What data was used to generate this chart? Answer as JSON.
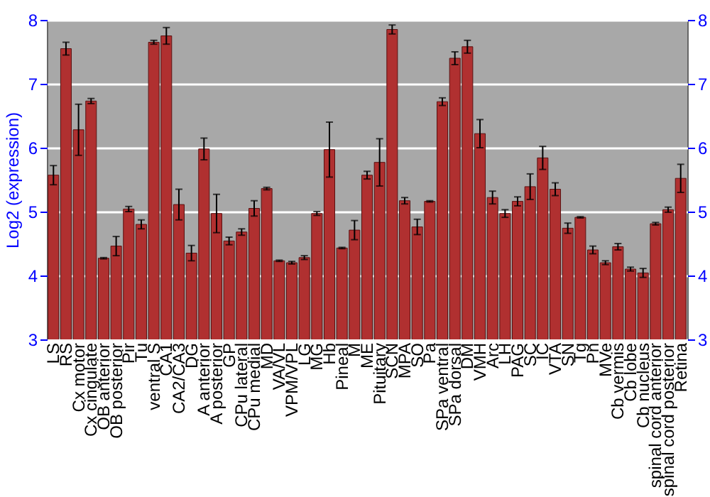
{
  "chart_data": {
    "type": "bar",
    "ylabel": "Log2 (expression)",
    "categories": [
      "LS",
      "RS",
      "Cx motor",
      "Cx cingulate",
      "OB anterior",
      "OB posterior",
      "Pir",
      "Tu",
      "ventral S",
      "CA1",
      "CA2/CA3",
      "DG",
      "A anterior",
      "A posterior",
      "GP",
      "CPu lateral",
      "CPu medial",
      "MD",
      "VA/VL",
      "VPM/VPL",
      "LG",
      "MG",
      "Hb",
      "Pineal",
      "M",
      "ME",
      "Pituitary",
      "SCN",
      "MPA",
      "SO",
      "Pa",
      "SPa ventral",
      "SPa dorsal",
      "DM",
      "VMH",
      "Arc",
      "LH",
      "PAG",
      "SC",
      "IC",
      "VTA",
      "SN",
      "Tg",
      "Pn",
      "MVe",
      "Cb vermis",
      "Cb lobe",
      "Cb nucleus",
      "spinal cord anterior",
      "spinal cord posterior",
      "Retina"
    ],
    "values": [
      5.57,
      7.55,
      6.28,
      6.73,
      4.27,
      4.46,
      5.04,
      4.8,
      7.65,
      7.75,
      5.11,
      4.35,
      5.98,
      4.97,
      4.54,
      4.68,
      5.05,
      5.36,
      4.23,
      4.2,
      4.28,
      4.97,
      5.97,
      4.43,
      4.71,
      5.57,
      5.77,
      7.85,
      5.17,
      4.76,
      5.16,
      6.72,
      7.4,
      7.58,
      6.22,
      5.22,
      4.97,
      5.16,
      5.39,
      5.84,
      5.35,
      4.74,
      4.91,
      4.4,
      4.2,
      4.45,
      4.1,
      4.04,
      4.81,
      5.03,
      5.52
    ],
    "errors": [
      0.15,
      0.1,
      0.4,
      0.04,
      0.01,
      0.15,
      0.04,
      0.07,
      0.03,
      0.13,
      0.24,
      0.12,
      0.17,
      0.3,
      0.06,
      0.05,
      0.12,
      0.02,
      0.01,
      0.02,
      0.03,
      0.03,
      0.43,
      0.01,
      0.15,
      0.06,
      0.37,
      0.07,
      0.05,
      0.12,
      0.01,
      0.06,
      0.1,
      0.1,
      0.22,
      0.1,
      0.06,
      0.07,
      0.2,
      0.18,
      0.1,
      0.08,
      0.01,
      0.06,
      0.03,
      0.05,
      0.03,
      0.07,
      0.02,
      0.04,
      0.22
    ],
    "color": "#b03030",
    "ylim": [
      3,
      8
    ],
    "yticks": [
      3,
      4,
      5,
      6,
      7,
      8
    ],
    "y2lim": [
      3,
      8
    ],
    "y2ticks": [
      3,
      4,
      5,
      6,
      7,
      8
    ],
    "grid": "y"
  }
}
